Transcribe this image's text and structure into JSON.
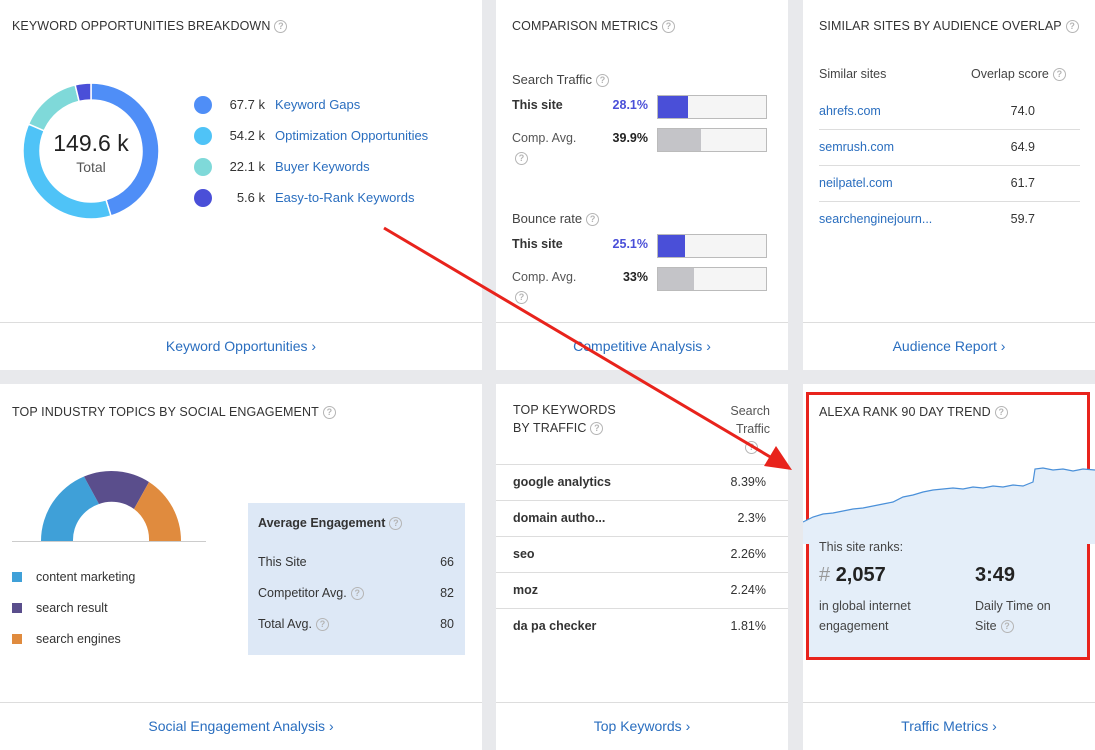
{
  "keyword_card": {
    "title": "KEYWORD OPPORTUNITIES BREAKDOWN",
    "total_value": "149.6 k",
    "total_label": "Total",
    "items": [
      {
        "value": "67.7 k",
        "label": "Keyword Gaps",
        "color": "#4f8ef7"
      },
      {
        "value": "54.2 k",
        "label": "Optimization Opportunities",
        "color": "#4fc3f7"
      },
      {
        "value": "22.1 k",
        "label": "Buyer Keywords",
        "color": "#7fd9d9"
      },
      {
        "value": "5.6 k",
        "label": "Easy-to-Rank Keywords",
        "color": "#4a4fd8"
      }
    ],
    "footer": "Keyword Opportunities ›"
  },
  "comparison_card": {
    "title": "COMPARISON METRICS",
    "search_traffic": {
      "label": "Search Traffic",
      "this_site_label": "This site",
      "this_site_value": "28.1%",
      "this_site_pct": 28.1,
      "comp_label": "Comp. Avg.",
      "comp_value": "39.9%",
      "comp_pct": 39.9
    },
    "bounce_rate": {
      "label": "Bounce rate",
      "this_site_label": "This site",
      "this_site_value": "25.1%",
      "this_site_pct": 25.1,
      "comp_label": "Comp. Avg.",
      "comp_value": "33%",
      "comp_pct": 33
    },
    "footer": "Competitive Analysis ›"
  },
  "similar_card": {
    "title": "SIMILAR SITES BY AUDIENCE OVERLAP",
    "col1": "Similar sites",
    "col2": "Overlap score",
    "rows": [
      {
        "site": "ahrefs.com",
        "score": "74.0"
      },
      {
        "site": "semrush.com",
        "score": "64.9"
      },
      {
        "site": "neilpatel.com",
        "score": "61.7"
      },
      {
        "site": "searchenginejourn...",
        "score": "59.7"
      }
    ],
    "footer": "Audience Report ›"
  },
  "social_card": {
    "title": "TOP INDUSTRY TOPICS BY SOCIAL ENGAGEMENT",
    "legend": [
      {
        "label": "content marketing",
        "color": "#3fa0d8"
      },
      {
        "label": "search result",
        "color": "#5a4e8c"
      },
      {
        "label": "search engines",
        "color": "#e08b3e"
      }
    ],
    "engagement": {
      "title": "Average Engagement",
      "rows": [
        {
          "label": "This Site",
          "value": "66"
        },
        {
          "label": "Competitor Avg.",
          "value": "82"
        },
        {
          "label": "Total Avg.",
          "value": "80"
        }
      ]
    },
    "footer": "Social Engagement Analysis ›"
  },
  "keywords_card": {
    "title_line1": "TOP KEYWORDS",
    "title_line2": "BY TRAFFIC",
    "col_line1": "Search",
    "col_line2": "Traffic",
    "rows": [
      {
        "keyword": "google analytics",
        "value": "8.39%"
      },
      {
        "keyword": "domain autho...",
        "value": "2.3%"
      },
      {
        "keyword": "seo",
        "value": "2.26%"
      },
      {
        "keyword": "moz",
        "value": "2.24%"
      },
      {
        "keyword": "da pa checker",
        "value": "1.81%"
      }
    ],
    "footer": "Top Keywords ›"
  },
  "alexa_card": {
    "title": "ALEXA RANK 90 DAY TREND",
    "ranks_label": "This site ranks:",
    "rank_hash": "#",
    "rank_value": "2,057",
    "rank_desc_line1": "in global internet",
    "rank_desc_line2": "engagement",
    "time_value": "3:49",
    "time_desc_line1": "Daily Time on",
    "time_desc_line2": "Site",
    "highlight_color": "#e8231c",
    "footer": "Traffic Metrics ›"
  }
}
